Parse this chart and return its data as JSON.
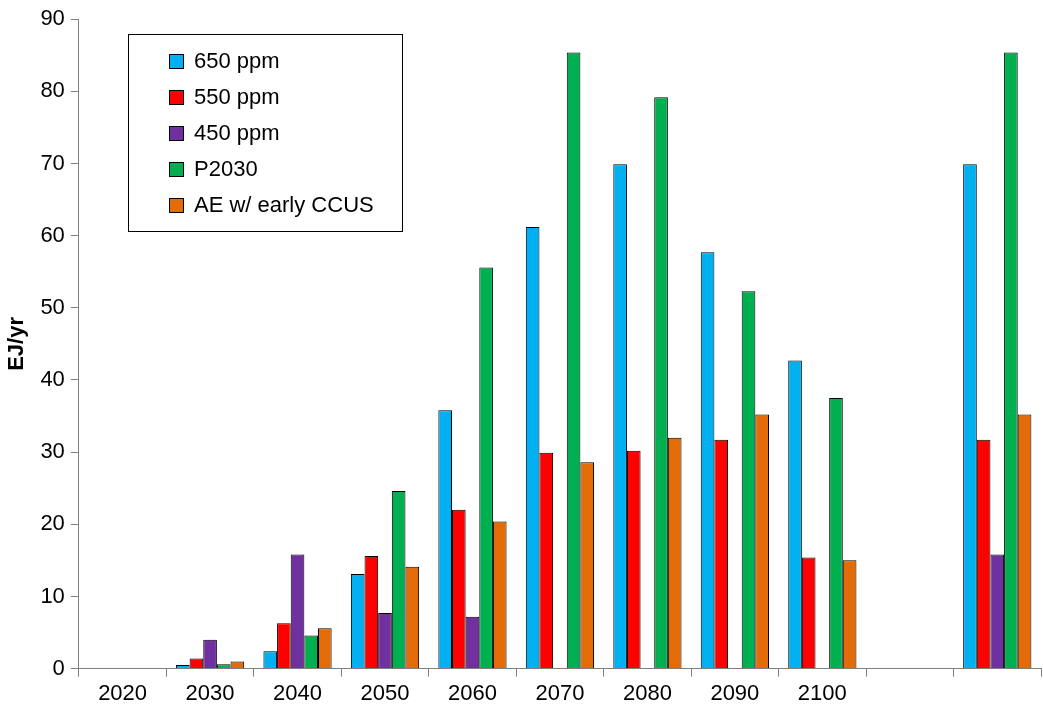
{
  "chart_data": {
    "type": "bar",
    "ylabel": "EJ/yr",
    "categories": [
      "2020",
      "2030",
      "2040",
      "2050",
      "2060",
      "2070",
      "2080",
      "2090",
      "2100",
      null,
      null
    ],
    "series": [
      {
        "name": "650 ppm",
        "color": "#00b0f0",
        "values": [
          null,
          0.5,
          2.4,
          13.1,
          35.8,
          61.2,
          69.9,
          57.7,
          42.7,
          null,
          69.9
        ]
      },
      {
        "name": "550 ppm",
        "color": "#ff0000",
        "values": [
          null,
          1.4,
          6.3,
          15.6,
          22.0,
          29.9,
          30.2,
          31.7,
          15.4,
          null,
          31.7
        ]
      },
      {
        "name": "450 ppm",
        "color": "#7030a0",
        "values": [
          null,
          4.0,
          15.8,
          7.7,
          7.2,
          null,
          null,
          null,
          null,
          null,
          15.8
        ]
      },
      {
        "name": "P2030",
        "color": "#00b050",
        "values": [
          null,
          0.6,
          4.6,
          24.6,
          55.6,
          85.4,
          79.2,
          52.3,
          37.5,
          null,
          85.4
        ]
      },
      {
        "name": "AE w/ early CCUS",
        "color": "#e36c09",
        "values": [
          null,
          1.0,
          5.6,
          14.1,
          20.4,
          28.6,
          32.0,
          35.2,
          15.0,
          null,
          35.2
        ]
      }
    ],
    "ylim": [
      0,
      90
    ],
    "yticks": [
      0,
      10,
      20,
      30,
      40,
      50,
      60,
      70,
      80,
      90
    ],
    "grid": false,
    "legend": "top left"
  }
}
